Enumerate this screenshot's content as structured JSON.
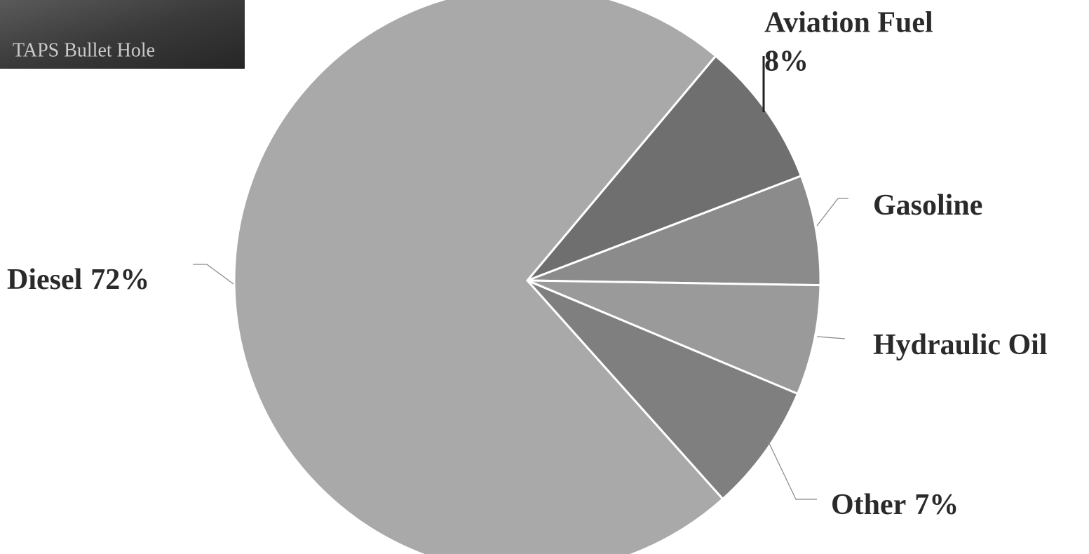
{
  "image_caption": "TAPS Bullet Hole",
  "chart_data": {
    "type": "pie",
    "categories": [
      "Aviation Fuel",
      "Gasoline",
      "Hydraulic Oil",
      "Other",
      "Diesel"
    ],
    "values": [
      8,
      6,
      6,
      7,
      72
    ],
    "value_labels": [
      "8%",
      null,
      null,
      "7%",
      "72%"
    ],
    "colors": [
      "#6f6f6f",
      "#8b8b8b",
      "#9a9a9a",
      "#7f7f7f",
      "#a9a9a9"
    ]
  }
}
